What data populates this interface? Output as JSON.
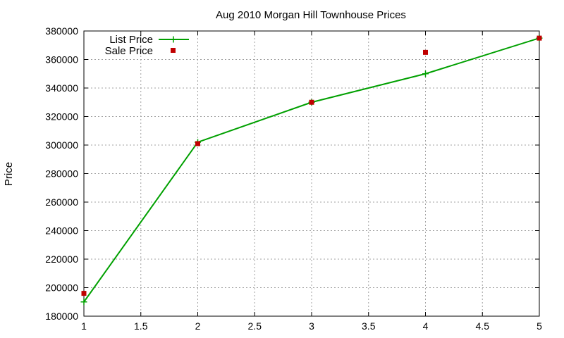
{
  "chart_data": {
    "type": "line",
    "title": "Aug 2010 Morgan Hill Townhouse Prices",
    "xlabel": "",
    "ylabel": "Price",
    "xlim": [
      1,
      5
    ],
    "ylim": [
      180000,
      380000
    ],
    "xticks": [
      1,
      1.5,
      2,
      2.5,
      3,
      3.5,
      4,
      4.5,
      5
    ],
    "xtick_labels": [
      "1",
      "1.5",
      "2",
      "2.5",
      "3",
      "3.5",
      "4",
      "4.5",
      "5"
    ],
    "yticks": [
      180000,
      200000,
      220000,
      240000,
      260000,
      280000,
      300000,
      320000,
      340000,
      360000,
      380000
    ],
    "ytick_labels": [
      "180000",
      "200000",
      "220000",
      "240000",
      "260000",
      "280000",
      "300000",
      "320000",
      "340000",
      "360000",
      "380000"
    ],
    "grid": true,
    "legend_position": "top-left",
    "series": [
      {
        "name": "List Price",
        "style": "line-with-plus-markers",
        "color": "#00a000",
        "x": [
          1,
          2,
          3,
          4,
          5
        ],
        "y": [
          190000,
          302000,
          330000,
          350000,
          375000
        ]
      },
      {
        "name": "Sale Price",
        "style": "square-markers",
        "color": "#c00000",
        "x": [
          1,
          2,
          3,
          4,
          5
        ],
        "y": [
          196000,
          301000,
          330000,
          365000,
          375000
        ]
      }
    ]
  }
}
